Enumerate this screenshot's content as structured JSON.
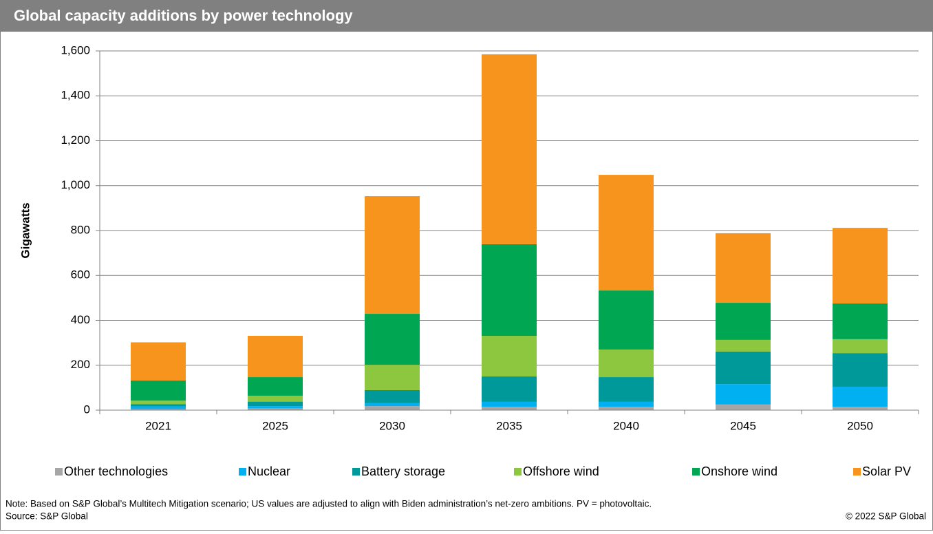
{
  "chart_data": {
    "type": "stacked_bar",
    "title": "Global capacity additions by power technology",
    "ylabel": "Gigawatts",
    "categories": [
      "2021",
      "2025",
      "2030",
      "2035",
      "2040",
      "2045",
      "2050"
    ],
    "series": [
      {
        "name": "Other technologies",
        "color": "#a6a6a6",
        "values": [
          5,
          8,
          18,
          15,
          15,
          25,
          15
        ]
      },
      {
        "name": "Nuclear",
        "color": "#00b0f0",
        "values": [
          12,
          10,
          13,
          22,
          22,
          91,
          89
        ]
      },
      {
        "name": "Battery storage",
        "color": "#009999",
        "values": [
          10,
          20,
          58,
          113,
          110,
          145,
          150
        ]
      },
      {
        "name": "Offshore wind",
        "color": "#8dc63f",
        "values": [
          15,
          26,
          113,
          181,
          123,
          52,
          62
        ]
      },
      {
        "name": "Onshore wind",
        "color": "#00a651",
        "values": [
          90,
          83,
          227,
          408,
          263,
          165,
          159
        ]
      },
      {
        "name": "Solar PV",
        "color": "#f7941d",
        "values": [
          170,
          184,
          524,
          846,
          515,
          310,
          337
        ]
      }
    ],
    "ylim": [
      0,
      1600
    ],
    "yticks": [
      0,
      200,
      400,
      600,
      800,
      {
        "value": 1000,
        "label": "1,000"
      },
      {
        "value": 1200,
        "label": "1,200"
      },
      {
        "value": 1400,
        "label": "1,400"
      },
      {
        "value": 1600,
        "label": "1,600"
      }
    ],
    "grid": true,
    "legend": "bottom",
    "note": "Note: Based on S&P Global’s Multitech Mitigation scenario; US values are adjusted to align with Biden administration’s net-zero ambitions. PV = photovoltaic.",
    "source": "Source: S&P Global",
    "copyright": "© 2022 S&P Global"
  }
}
